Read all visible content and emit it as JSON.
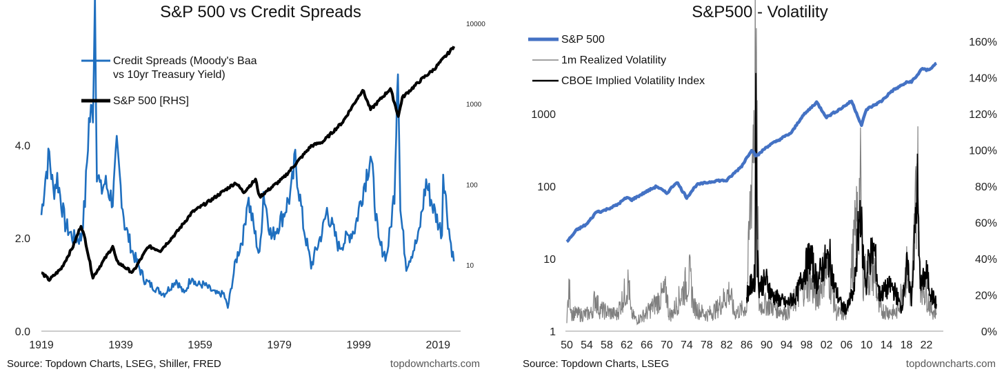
{
  "colors": {
    "blue": "#1f6fbf",
    "black": "#000000",
    "sp_blue": "#4472c4",
    "gray": "#808080"
  },
  "chart_data": [
    {
      "type": "line",
      "title": "S&P 500 vs Credit Spreads",
      "source": "Source: Topdown Charts, LSEG, Shiller, FRED",
      "watermark": "topdowncharts.com",
      "x_ticks": [
        "1919",
        "1939",
        "1959",
        "1979",
        "1999",
        "2019"
      ],
      "xlim": [
        1919,
        2024
      ],
      "y_left": {
        "ticks": [
          "0.0",
          "2.0",
          "4.0"
        ],
        "range": [
          0,
          6.2
        ]
      },
      "y_right": {
        "scale": "log",
        "ticks": [
          "10",
          "100",
          "1000",
          "10000"
        ],
        "range": [
          1.5,
          10000
        ]
      },
      "legend": {
        "placement": "top-left"
      },
      "series": [
        {
          "name": "Credit Spreads (Moody's Baa vs 10yr Treasury Yield)",
          "legend_lines": [
            "Credit Spreads (Moody's Baa",
            "vs 10yr Treasury Yield)"
          ],
          "axis": "left",
          "color_key": "blue",
          "x": [
            1919,
            1920,
            1921,
            1922,
            1923,
            1925,
            1927,
            1929,
            1930,
            1931,
            1932,
            1932.5,
            1933,
            1934,
            1935,
            1937,
            1938,
            1940,
            1942,
            1945,
            1948,
            1950,
            1953,
            1955,
            1957,
            1958,
            1960,
            1963,
            1965,
            1966,
            1968,
            1970,
            1971,
            1974,
            1975,
            1977,
            1980,
            1982,
            1983,
            1985,
            1987,
            1990,
            1991,
            1994,
            1998,
            2000,
            2002,
            2004,
            2006,
            2007,
            2008,
            2008.9,
            2009.5,
            2011,
            2014,
            2016,
            2018,
            2020,
            2020.3,
            2021,
            2022,
            2023
          ],
          "values": [
            2.5,
            3.3,
            3.8,
            3.0,
            3.3,
            2.3,
            2.0,
            2.0,
            2.8,
            4.5,
            4.8,
            7.3,
            3.5,
            3.0,
            3.2,
            2.8,
            3.9,
            2.3,
            1.7,
            1.1,
            0.9,
            0.8,
            1.1,
            0.8,
            1.2,
            1.0,
            1.0,
            0.8,
            0.8,
            0.5,
            1.5,
            2.1,
            2.9,
            1.6,
            3.0,
            2.0,
            2.5,
            3.0,
            3.7,
            2.3,
            1.4,
            2.2,
            2.6,
            1.8,
            2.2,
            3.0,
            3.8,
            1.9,
            1.6,
            2.2,
            3.0,
            6.0,
            2.6,
            1.4,
            2.0,
            3.2,
            2.6,
            2.1,
            3.5,
            2.8,
            2.0,
            1.5
          ]
        },
        {
          "name": "S&P 500 [RHS]",
          "legend_lines": [
            "S&P 500 [RHS]"
          ],
          "axis": "right",
          "color_key": "black",
          "x": [
            1919,
            1921,
            1924,
            1927,
            1929,
            1930,
            1932,
            1934,
            1937,
            1938,
            1942,
            1946,
            1949,
            1953,
            1957,
            1962,
            1966,
            1968,
            1970,
            1973,
            1974,
            1980,
            1987,
            1990,
            1995,
            2000,
            2002,
            2007,
            2009,
            2010,
            2015,
            2018,
            2020,
            2022,
            2023
          ],
          "values": [
            8,
            6.5,
            9,
            17,
            31,
            21,
            7,
            10,
            17,
            11,
            8,
            17,
            15,
            25,
            45,
            65,
            90,
            105,
            80,
            115,
            70,
            120,
            300,
            340,
            600,
            1500,
            850,
            1550,
            700,
            1200,
            2050,
            2700,
            3500,
            4500,
            5200
          ]
        }
      ]
    },
    {
      "type": "line",
      "title": "S&P500 - Volatility",
      "source": "Source: Topdown Charts, LSEG",
      "watermark": "topdowncharts.com",
      "x_ticks": [
        "50",
        "54",
        "58",
        "62",
        "66",
        "70",
        "74",
        "78",
        "82",
        "86",
        "90",
        "94",
        "98",
        "02",
        "06",
        "10",
        "14",
        "18",
        "22"
      ],
      "xlim": [
        1950,
        2024
      ],
      "y_left": {
        "scale": "log",
        "ticks": [
          "1",
          "10",
          "100",
          "1000"
        ],
        "range": [
          1,
          10000
        ]
      },
      "y_right": {
        "ticks": [
          "0%",
          "20%",
          "40%",
          "60%",
          "80%",
          "100%",
          "120%",
          "140%",
          "160%"
        ],
        "range": [
          0,
          160
        ]
      },
      "legend": {
        "placement": "top-left"
      },
      "series": [
        {
          "name": "S&P 500",
          "axis": "left",
          "color_key": "sp_blue",
          "x": [
            1950,
            1952,
            1954,
            1956,
            1957,
            1960,
            1962,
            1963,
            1966,
            1968,
            1970,
            1972,
            1974,
            1976,
            1980,
            1982,
            1985,
            1987,
            1988,
            1990,
            1995,
            1997,
            2000,
            2002,
            2005,
            2007,
            2009,
            2010,
            2013,
            2015,
            2018,
            2019,
            2020,
            2021,
            2022,
            2023,
            2024
          ],
          "values": [
            17,
            25,
            30,
            45,
            45,
            55,
            70,
            65,
            85,
            100,
            80,
            115,
            70,
            105,
            120,
            120,
            190,
            320,
            260,
            350,
            550,
            900,
            1450,
            900,
            1200,
            1500,
            700,
            1150,
            1500,
            2050,
            2700,
            2800,
            3250,
            4200,
            4000,
            4300,
            5000
          ]
        },
        {
          "name": "1m Realized Volatility",
          "axis": "right",
          "color_key": "gray",
          "x": [
            1950,
            1950.5,
            1951,
            1953,
            1955,
            1955.7,
            1956.5,
            1960,
            1962.4,
            1962.8,
            1964,
            1966,
            1970,
            1970.4,
            1971,
            1974.6,
            1975.5,
            1978,
            1980,
            1982.6,
            1983.5,
            1986,
            1987.8,
            1988.5,
            1990,
            1994,
            1997.5,
            1998.7,
            2000,
            2001.7,
            2002.7,
            2004,
            2006,
            2008.8,
            2009.3,
            2011.6,
            2012.5,
            2016,
            2018.2,
            2019,
            2020.2,
            2020.6,
            2022,
            2023,
            2024
          ],
          "values": [
            8,
            23,
            10,
            9,
            10,
            19,
            12,
            9,
            27,
            10,
            6,
            10,
            22,
            10,
            9,
            30,
            13,
            9,
            12,
            22,
            10,
            13,
            148,
            14,
            15,
            10,
            25,
            28,
            17,
            35,
            28,
            10,
            9,
            78,
            30,
            33,
            12,
            10,
            35,
            15,
            95,
            30,
            20,
            12,
            10
          ]
        },
        {
          "name": "CBOE Implied Volatility Index",
          "axis": "right",
          "color_key": "black",
          "x": [
            1986,
            1987.7,
            1987.85,
            1988.1,
            1988.5,
            1990,
            1991,
            1994,
            1996,
            1997.8,
            1998.7,
            2000,
            2001.7,
            2002.7,
            2003.5,
            2005,
            2006,
            2007.5,
            2008.8,
            2009.2,
            2010,
            2010.4,
            2011.6,
            2012.5,
            2015,
            2016,
            2017,
            2018.1,
            2019,
            2020.2,
            2020.6,
            2021,
            2022,
            2023,
            2024
          ],
          "values": [
            20,
            30,
            150,
            40,
            25,
            28,
            20,
            15,
            20,
            35,
            42,
            28,
            38,
            40,
            25,
            14,
            12,
            22,
            70,
            45,
            25,
            40,
            45,
            20,
            25,
            20,
            12,
            36,
            18,
            80,
            35,
            25,
            32,
            20,
            15
          ]
        }
      ]
    }
  ]
}
